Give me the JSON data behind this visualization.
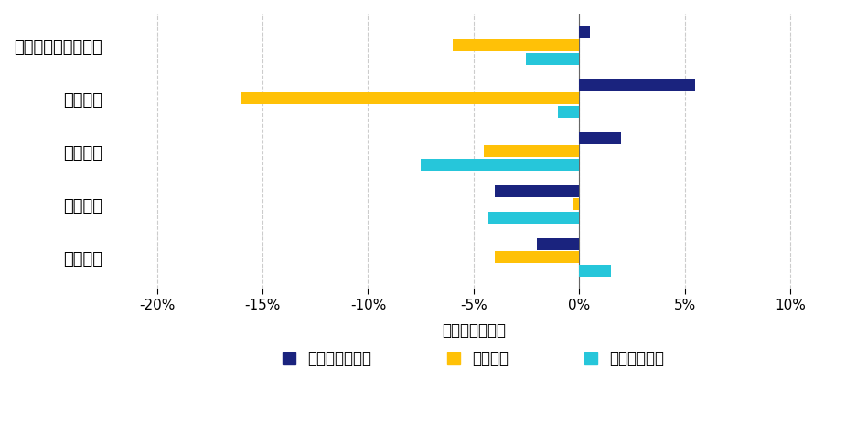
{
  "categories": [
    "日本国債",
    "米国国債",
    "海外株式",
    "国内株式",
    "合成ポートフォリオ"
  ],
  "series": {
    "緩やかな正常化": [
      -2.0,
      -4.0,
      2.0,
      5.5,
      0.5
    ],
    "引き締め": [
      -4.0,
      -0.3,
      -4.5,
      -16.0,
      -6.0
    ],
    "ハト派的政策": [
      1.5,
      -4.3,
      -7.5,
      -1.0,
      -2.5
    ]
  },
  "colors": {
    "緩やかな正常化": "#1a237e",
    "引き締め": "#FFC107",
    "ハト派的政策": "#26C6DA"
  },
  "xlim": [
    -22,
    12
  ],
  "xticks": [
    -20,
    -15,
    -10,
    -5,
    0,
    5,
    10
  ],
  "xticklabels": [
    "-20%",
    "-15%",
    "-10%",
    "-5%",
    "0%",
    "5%",
    "10%"
  ],
  "xlabel": "リターン（％）",
  "background_color": "#ffffff",
  "grid_color": "#cccccc",
  "bar_height": 0.22,
  "bar_spacing": 0.25
}
